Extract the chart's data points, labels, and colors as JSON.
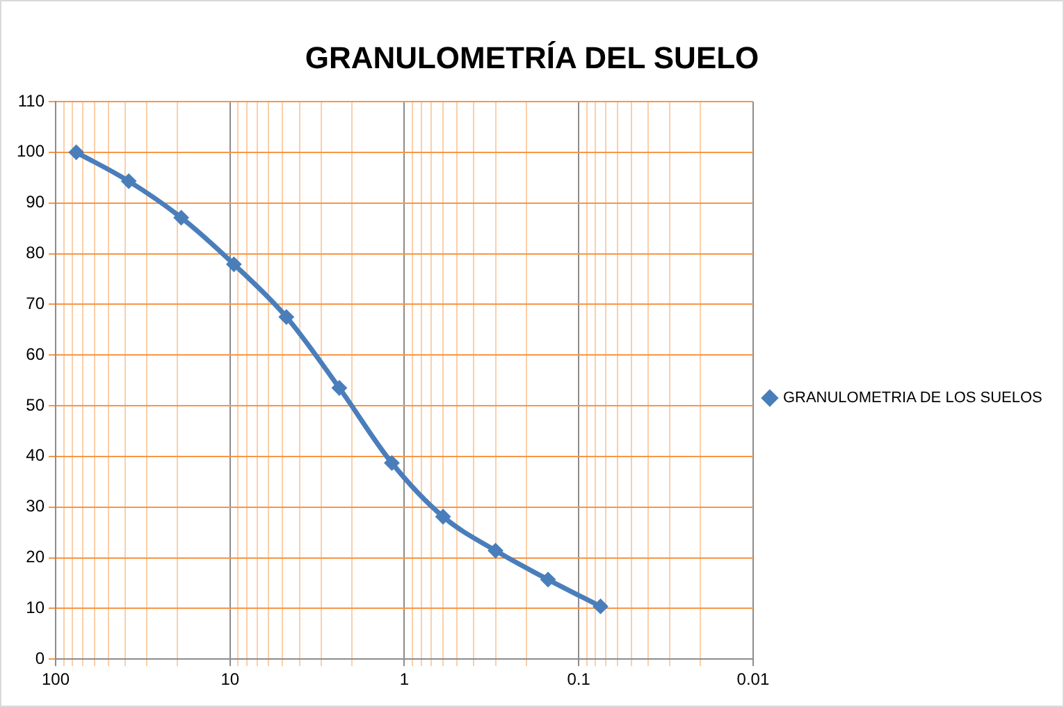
{
  "chart_data": {
    "type": "line",
    "title": "GRANULOMETRÍA DEL SUELO",
    "x": [
      76.2,
      38.1,
      19.05,
      9.5,
      4.75,
      2.36,
      1.18,
      0.6,
      0.3,
      0.15,
      0.075
    ],
    "series": [
      {
        "name": "GRANULOMETRIA DE LOS SUELOS",
        "color": "#4a7ebb",
        "values": [
          100,
          94.3,
          87.1,
          77.9,
          67.5,
          53.5,
          38.7,
          28.1,
          21.4,
          15.7,
          10.4
        ]
      }
    ],
    "log": "x",
    "xlim": [
      100,
      0.01
    ],
    "xticks": [
      100,
      10,
      1,
      0.1,
      0.01,
      {
        "value": 90,
        "label": null
      },
      {
        "value": 80,
        "label": null
      },
      {
        "value": 70,
        "label": null
      },
      {
        "value": 60,
        "label": null
      },
      {
        "value": 50,
        "label": null
      },
      {
        "value": 40,
        "label": null
      },
      {
        "value": 30,
        "label": null
      },
      {
        "value": 20,
        "label": null
      },
      {
        "value": 9,
        "label": null
      },
      {
        "value": 8,
        "label": null
      },
      {
        "value": 7,
        "label": null
      },
      {
        "value": 6,
        "label": null
      },
      {
        "value": 5,
        "label": null
      },
      {
        "value": 4,
        "label": null
      },
      {
        "value": 3,
        "label": null
      },
      {
        "value": 2,
        "label": null
      },
      {
        "value": 0.9,
        "label": null
      },
      {
        "value": 0.8,
        "label": null
      },
      {
        "value": 0.7,
        "label": null
      },
      {
        "value": 0.6,
        "label": null
      },
      {
        "value": 0.5,
        "label": null
      },
      {
        "value": 0.4,
        "label": null
      },
      {
        "value": 0.3,
        "label": null
      },
      {
        "value": 0.2,
        "label": null
      },
      {
        "value": 0.09,
        "label": null
      },
      {
        "value": 0.08,
        "label": null
      },
      {
        "value": 0.07,
        "label": null
      },
      {
        "value": 0.06,
        "label": null
      },
      {
        "value": 0.05,
        "label": null
      },
      {
        "value": 0.04,
        "label": null
      },
      {
        "value": 0.03,
        "label": null
      },
      {
        "value": 0.02,
        "label": null
      }
    ],
    "ylim": [
      0,
      110
    ],
    "yticks": [
      0,
      10,
      20,
      30,
      40,
      50,
      60,
      70,
      80,
      90,
      100,
      110
    ],
    "grid": true,
    "legend": "right",
    "marker": "diamond",
    "line_style": "solid"
  }
}
